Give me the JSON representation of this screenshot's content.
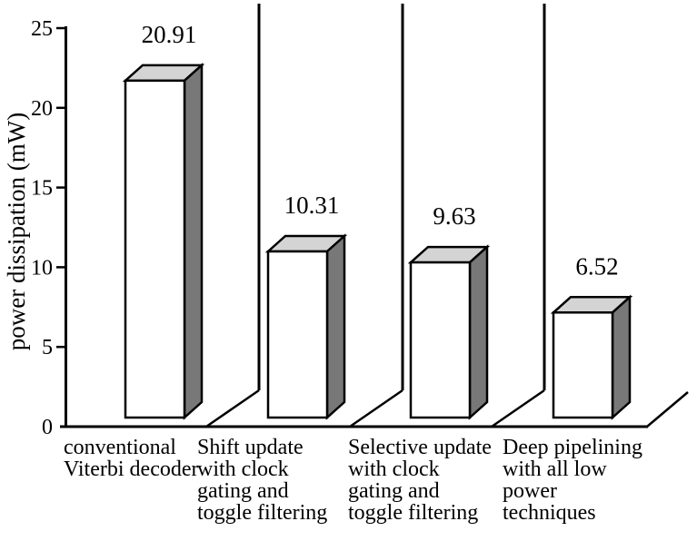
{
  "chart_data": {
    "type": "bar",
    "title": "",
    "ylabel": "power dissipation (mW)",
    "xlabel": "",
    "ylim": [
      0,
      25
    ],
    "yticks": [
      0,
      5,
      10,
      15,
      20,
      25
    ],
    "grid": false,
    "legend": null,
    "style": "3d-block-bars-with-panel-separators",
    "categories": [
      "conventional Viterbi decoder",
      "Shift update with clock gating and toggle filtering",
      "Selective update with clock gating and toggle filtering",
      "Deep pipelining with all low power techniques"
    ],
    "category_label_lines": [
      [
        "conventional",
        "Viterbi decoder"
      ],
      [
        "Shift update",
        "with clock",
        "gating and",
        "toggle filtering"
      ],
      [
        "Selective update",
        "with clock",
        "gating and",
        "toggle filtering"
      ],
      [
        "Deep pipelining",
        "with all low",
        "power",
        "techniques"
      ]
    ],
    "values": [
      20.91,
      10.31,
      9.63,
      6.52
    ],
    "value_labels": [
      "20.91",
      "10.31",
      "9.63",
      "6.52"
    ],
    "colors": {
      "bar_front": "#ffffff",
      "bar_top": "#d4d4d4",
      "bar_side": "#787878",
      "outline": "#000000",
      "text": "#000000",
      "background": "#ffffff"
    }
  }
}
